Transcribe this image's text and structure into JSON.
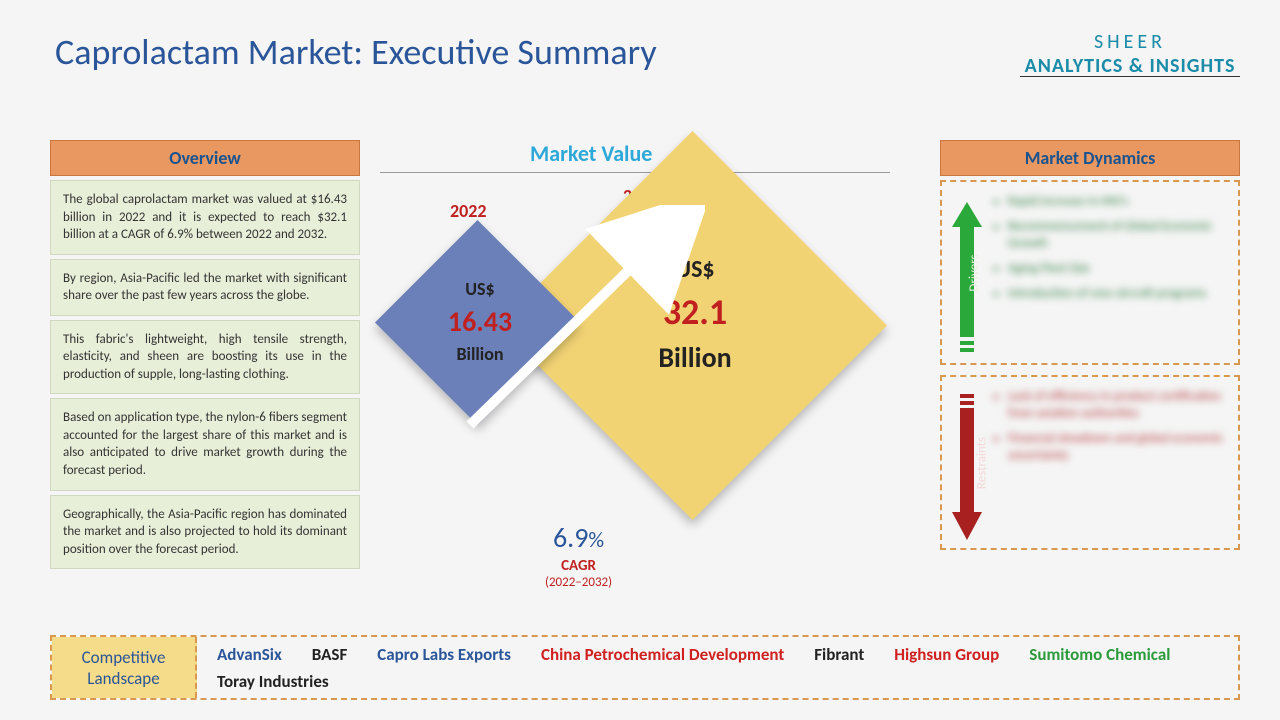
{
  "title": "Caprolactam Market: Executive Summary",
  "logo": {
    "line1": "SHEER",
    "line2": "ANALYTICS & INSIGHTS"
  },
  "overview": {
    "header": "Overview",
    "items": [
      "The global caprolactam market was valued at $16.43 billion in 2022 and it is expected to reach $32.1 billion at a CAGR of 6.9% between 2022 and 2032.",
      "By region, Asia-Pacific led the market with significant share over the past few years across the globe.",
      "This fabric's lightweight, high tensile strength, elasticity, and sheen are boosting its use in the production of supple, long-lasting clothing.",
      "Based on application type, the nylon-6 fibers segment accounted for the largest share of this market and is also anticipated to drive market growth during the forecast period.",
      "Geographically, the Asia-Pacific region has dominated the market and is also projected to hold its dominant position over the forecast period."
    ]
  },
  "market_value": {
    "label": "Market Value",
    "year_2022": "2022",
    "forecast_label": "2032\nForecast",
    "val_2022": {
      "currency": "US$",
      "amount": "16.43",
      "unit": "Billion"
    },
    "val_2032": {
      "currency": "US$",
      "amount": "32.1",
      "unit": "Billion"
    },
    "cagr": {
      "value": "6.9",
      "pct": "%",
      "label": "CAGR",
      "period": "(2022–2032)"
    },
    "colors": {
      "diamond_small": "#6b7fb8",
      "diamond_large": "#f2d374",
      "accent_red": "#c02020",
      "accent_blue": "#2a5599"
    }
  },
  "dynamics": {
    "header": "Market Dynamics",
    "drivers_label": "Drivers",
    "restraints_label": "Restraints",
    "drivers": [
      "Rapid increase in HNI's",
      "Recommencement of Global Economic Growth",
      "Aging Fleet Size",
      "Introduction of new aircraft programs"
    ],
    "restraints": [
      "Lack of efficiency in product certification from aviation authorities",
      "Financial slowdown and global economic uncertainty"
    ],
    "colors": {
      "driver_arrow": "#2aa83a",
      "restraint_arrow": "#a82020"
    }
  },
  "competitive": {
    "label1": "Competitive",
    "label2": "Landscape",
    "companies": [
      {
        "name": "AdvanSix",
        "color": "#2a5599"
      },
      {
        "name": "BASF",
        "color": "#222222"
      },
      {
        "name": "Capro Labs Exports",
        "color": "#2a5599"
      },
      {
        "name": "China Petrochemical Development",
        "color": "#d02020"
      },
      {
        "name": "Fibrant",
        "color": "#222222"
      },
      {
        "name": "Highsun Group",
        "color": "#d02020"
      },
      {
        "name": "Sumitomo Chemical",
        "color": "#2a9a3a"
      },
      {
        "name": "Toray Industries",
        "color": "#222222"
      }
    ]
  }
}
